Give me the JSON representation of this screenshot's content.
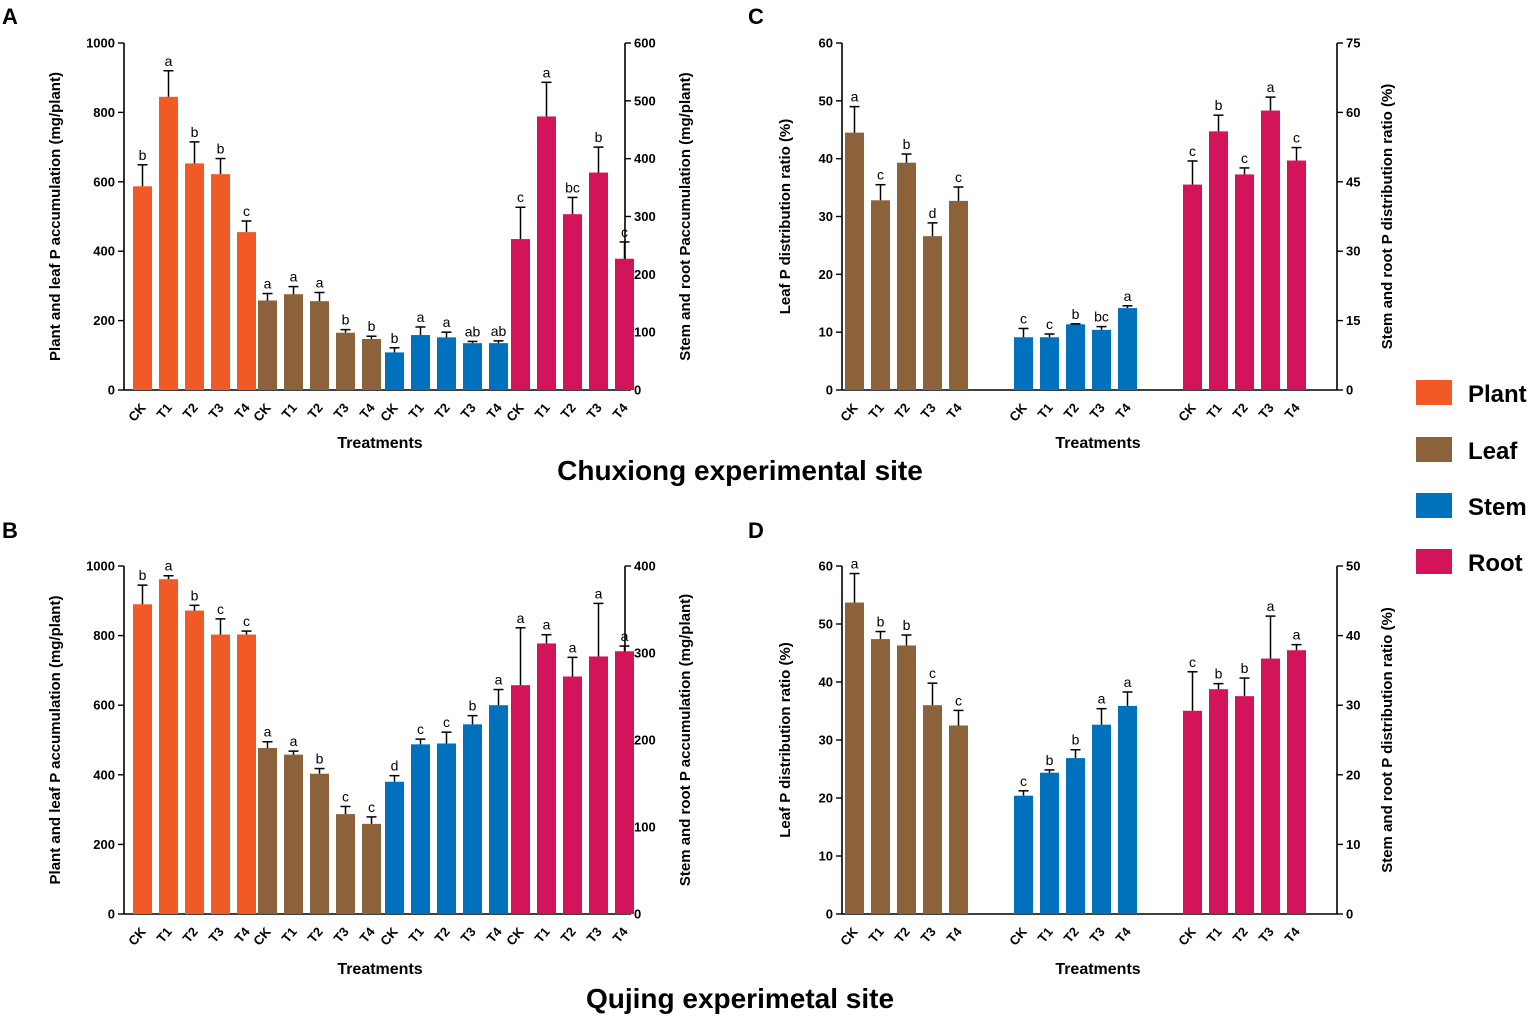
{
  "site_labels": {
    "top": "Chuxiong experimental site",
    "bottom": "Qujing experimetal site"
  },
  "legend": [
    {
      "name": "Plant",
      "color": "#F15A24"
    },
    {
      "name": "Leaf",
      "color": "#8B6239"
    },
    {
      "name": "Stem",
      "color": "#0071BC"
    },
    {
      "name": "Root",
      "color": "#D4145A"
    }
  ],
  "chart_data": [
    {
      "panel": "A",
      "type": "bar",
      "xlabel": "Treatments",
      "ylabel_left": "Plant and leaf P accumulation (mg/plant)",
      "ylabel_right": "Stem and root Paccumulation (mg/plant)",
      "ylim_left": [
        0,
        1000
      ],
      "yticks_left": [
        0,
        200,
        400,
        600,
        800,
        1000
      ],
      "ylim_right": [
        0,
        600
      ],
      "yticks_right": [
        0,
        100,
        200,
        300,
        400,
        500,
        600
      ],
      "categories": [
        "CK",
        "T1",
        "T2",
        "T3",
        "T4"
      ],
      "series": [
        {
          "name": "Plant",
          "axis": "left",
          "values": [
            587,
            845,
            653,
            622,
            455
          ],
          "errors": [
            62,
            75,
            62,
            45,
            32
          ],
          "letters": [
            "b",
            "a",
            "b",
            "b",
            "c"
          ]
        },
        {
          "name": "Leaf",
          "axis": "left",
          "values": [
            258,
            276,
            256,
            165,
            147
          ],
          "errors": [
            20,
            22,
            25,
            9,
            8
          ],
          "letters": [
            "a",
            "a",
            "a",
            "b",
            "b"
          ]
        },
        {
          "name": "Stem",
          "axis": "right",
          "values": [
            65,
            95,
            91,
            81,
            81
          ],
          "errors": [
            8,
            14,
            9,
            3,
            4
          ],
          "letters": [
            "b",
            "a",
            "a",
            "ab",
            "ab"
          ]
        },
        {
          "name": "Root",
          "axis": "right",
          "values": [
            261,
            473,
            304,
            376,
            227
          ],
          "errors": [
            55,
            59,
            29,
            44,
            29
          ],
          "letters": [
            "c",
            "a",
            "bc",
            "b",
            "c"
          ]
        }
      ]
    },
    {
      "panel": "B",
      "type": "bar",
      "xlabel": "Treatments",
      "ylabel_left": "Plant and leaf P accumulation (mg/plant)",
      "ylabel_right": "Stem and root P accumulation (mg/plant)",
      "ylim_left": [
        0,
        1000
      ],
      "yticks_left": [
        0,
        200,
        400,
        600,
        800,
        1000
      ],
      "ylim_right": [
        0,
        400
      ],
      "yticks_right": [
        0,
        100,
        200,
        300,
        400
      ],
      "categories": [
        "CK",
        "T1",
        "T2",
        "T3",
        "T4"
      ],
      "series": [
        {
          "name": "Plant",
          "axis": "left",
          "values": [
            890,
            962,
            872,
            803,
            803
          ],
          "errors": [
            55,
            10,
            15,
            45,
            10
          ],
          "letters": [
            "b",
            "a",
            "b",
            "c",
            "c"
          ]
        },
        {
          "name": "Leaf",
          "axis": "left",
          "values": [
            477,
            458,
            403,
            287,
            259
          ],
          "errors": [
            18,
            10,
            15,
            22,
            20
          ],
          "letters": [
            "a",
            "a",
            "b",
            "c",
            "c"
          ]
        },
        {
          "name": "Stem",
          "axis": "right",
          "values": [
            152,
            195,
            196,
            218,
            240
          ],
          "errors": [
            7,
            6,
            13,
            10,
            18
          ],
          "letters": [
            "d",
            "c",
            "c",
            "b",
            "a"
          ]
        },
        {
          "name": "Root",
          "axis": "right",
          "values": [
            263,
            311,
            273,
            296,
            302
          ],
          "errors": [
            66,
            10,
            22,
            61,
            6
          ],
          "letters": [
            "a",
            "a",
            "a",
            "a",
            "a"
          ]
        }
      ]
    },
    {
      "panel": "C",
      "type": "bar",
      "xlabel": "Treatments",
      "ylabel_left": "Leaf P distribution ratio (%)",
      "ylabel_right": "Stem and root P distribution ratio (%)",
      "ylim_left": [
        0,
        60
      ],
      "yticks_left": [
        0,
        10,
        20,
        30,
        40,
        50,
        60
      ],
      "ylim_right": [
        0,
        75
      ],
      "yticks_right": [
        0,
        15,
        30,
        45,
        60,
        75
      ],
      "categories": [
        "CK",
        "T1",
        "T2",
        "T3",
        "T4"
      ],
      "series": [
        {
          "name": "Leaf",
          "axis": "left",
          "values": [
            44.5,
            32.8,
            39.3,
            26.6,
            32.7
          ],
          "errors": [
            4.5,
            2.7,
            1.5,
            2.3,
            2.4
          ],
          "letters": [
            "a",
            "c",
            "b",
            "d",
            "c"
          ]
        },
        {
          "name": "Stem",
          "axis": "right",
          "values": [
            11.4,
            11.4,
            14.2,
            13.0,
            17.7
          ],
          "errors": [
            1.9,
            0.7,
            0.1,
            0.7,
            0.5
          ],
          "letters": [
            "c",
            "c",
            "b",
            "bc",
            "a"
          ]
        },
        {
          "name": "Root",
          "axis": "right",
          "values": [
            44.4,
            55.9,
            46.6,
            60.4,
            49.6
          ],
          "errors": [
            5.1,
            3.5,
            1.4,
            2.9,
            2.8
          ],
          "letters": [
            "c",
            "b",
            "c",
            "a",
            "c"
          ]
        }
      ]
    },
    {
      "panel": "D",
      "type": "bar",
      "xlabel": "Treatments",
      "ylabel_left": "Leaf P distribution ratio (%)",
      "ylabel_right": "Stem and root P distribution ratio (%)",
      "ylim_left": [
        0,
        60
      ],
      "yticks_left": [
        0,
        10,
        20,
        30,
        40,
        50,
        60
      ],
      "ylim_right": [
        0,
        50
      ],
      "yticks_right": [
        0,
        10,
        20,
        30,
        40,
        50
      ],
      "categories": [
        "CK",
        "T1",
        "T2",
        "T3",
        "T4"
      ],
      "series": [
        {
          "name": "Leaf",
          "axis": "left",
          "values": [
            53.7,
            47.4,
            46.3,
            36.0,
            32.5
          ],
          "errors": [
            5.0,
            1.3,
            1.8,
            3.8,
            2.6
          ],
          "letters": [
            "a",
            "b",
            "b",
            "c",
            "c"
          ]
        },
        {
          "name": "Stem",
          "axis": "right",
          "values": [
            17.0,
            20.3,
            22.4,
            27.2,
            29.9
          ],
          "errors": [
            0.7,
            0.4,
            1.2,
            2.3,
            2.0
          ],
          "letters": [
            "c",
            "b",
            "b",
            "a",
            "a"
          ]
        },
        {
          "name": "Root",
          "axis": "right",
          "values": [
            29.2,
            32.3,
            31.3,
            36.7,
            37.9
          ],
          "errors": [
            5.6,
            0.8,
            2.6,
            6.1,
            0.8
          ],
          "letters": [
            "c",
            "b",
            "b",
            "a",
            "a"
          ]
        }
      ]
    }
  ]
}
